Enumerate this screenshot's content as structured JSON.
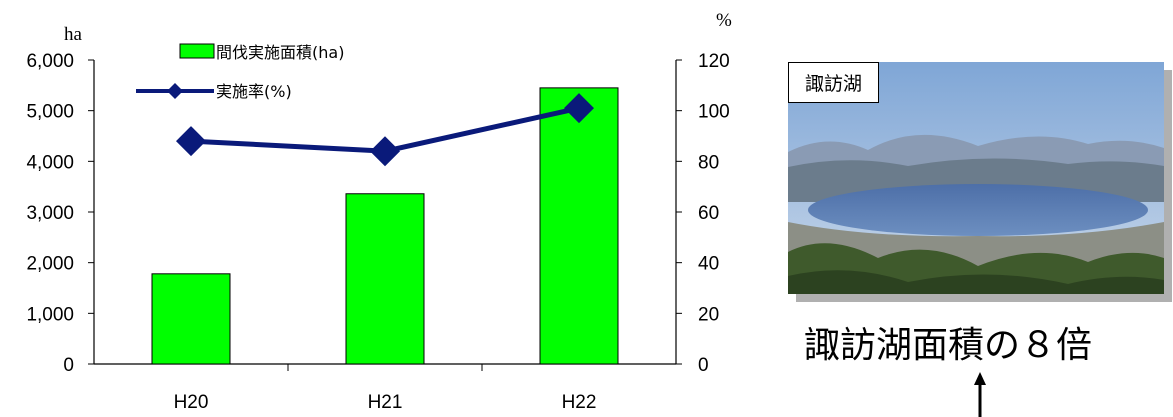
{
  "chart_data": {
    "type": "bar",
    "categories": [
      "H20",
      "H21",
      "H22"
    ],
    "series": [
      {
        "name": "間伐実施面積(ha)",
        "kind": "bar",
        "axis": "left",
        "color": "#00ff00",
        "values": [
          1780,
          3360,
          5450
        ]
      },
      {
        "name": "実施率(%)",
        "kind": "line",
        "axis": "right",
        "color": "#0a1a7a",
        "values": [
          88,
          84,
          101
        ]
      }
    ],
    "left_axis": {
      "unit": "ha",
      "ylim": [
        0,
        6000
      ],
      "ticks": [
        "0",
        "1,000",
        "2,000",
        "3,000",
        "4,000",
        "5,000",
        "6,000"
      ]
    },
    "right_axis": {
      "unit": "%",
      "ylim": [
        0,
        120
      ],
      "ticks": [
        "0",
        "20",
        "40",
        "60",
        "80",
        "100",
        "120"
      ]
    },
    "legend_position": "top-left",
    "grid": false
  },
  "photo": {
    "label": "諏訪湖"
  },
  "caption": "諏訪湖面積の８倍",
  "colors": {
    "bar": "#00ff00",
    "line": "#0a1a7a"
  }
}
